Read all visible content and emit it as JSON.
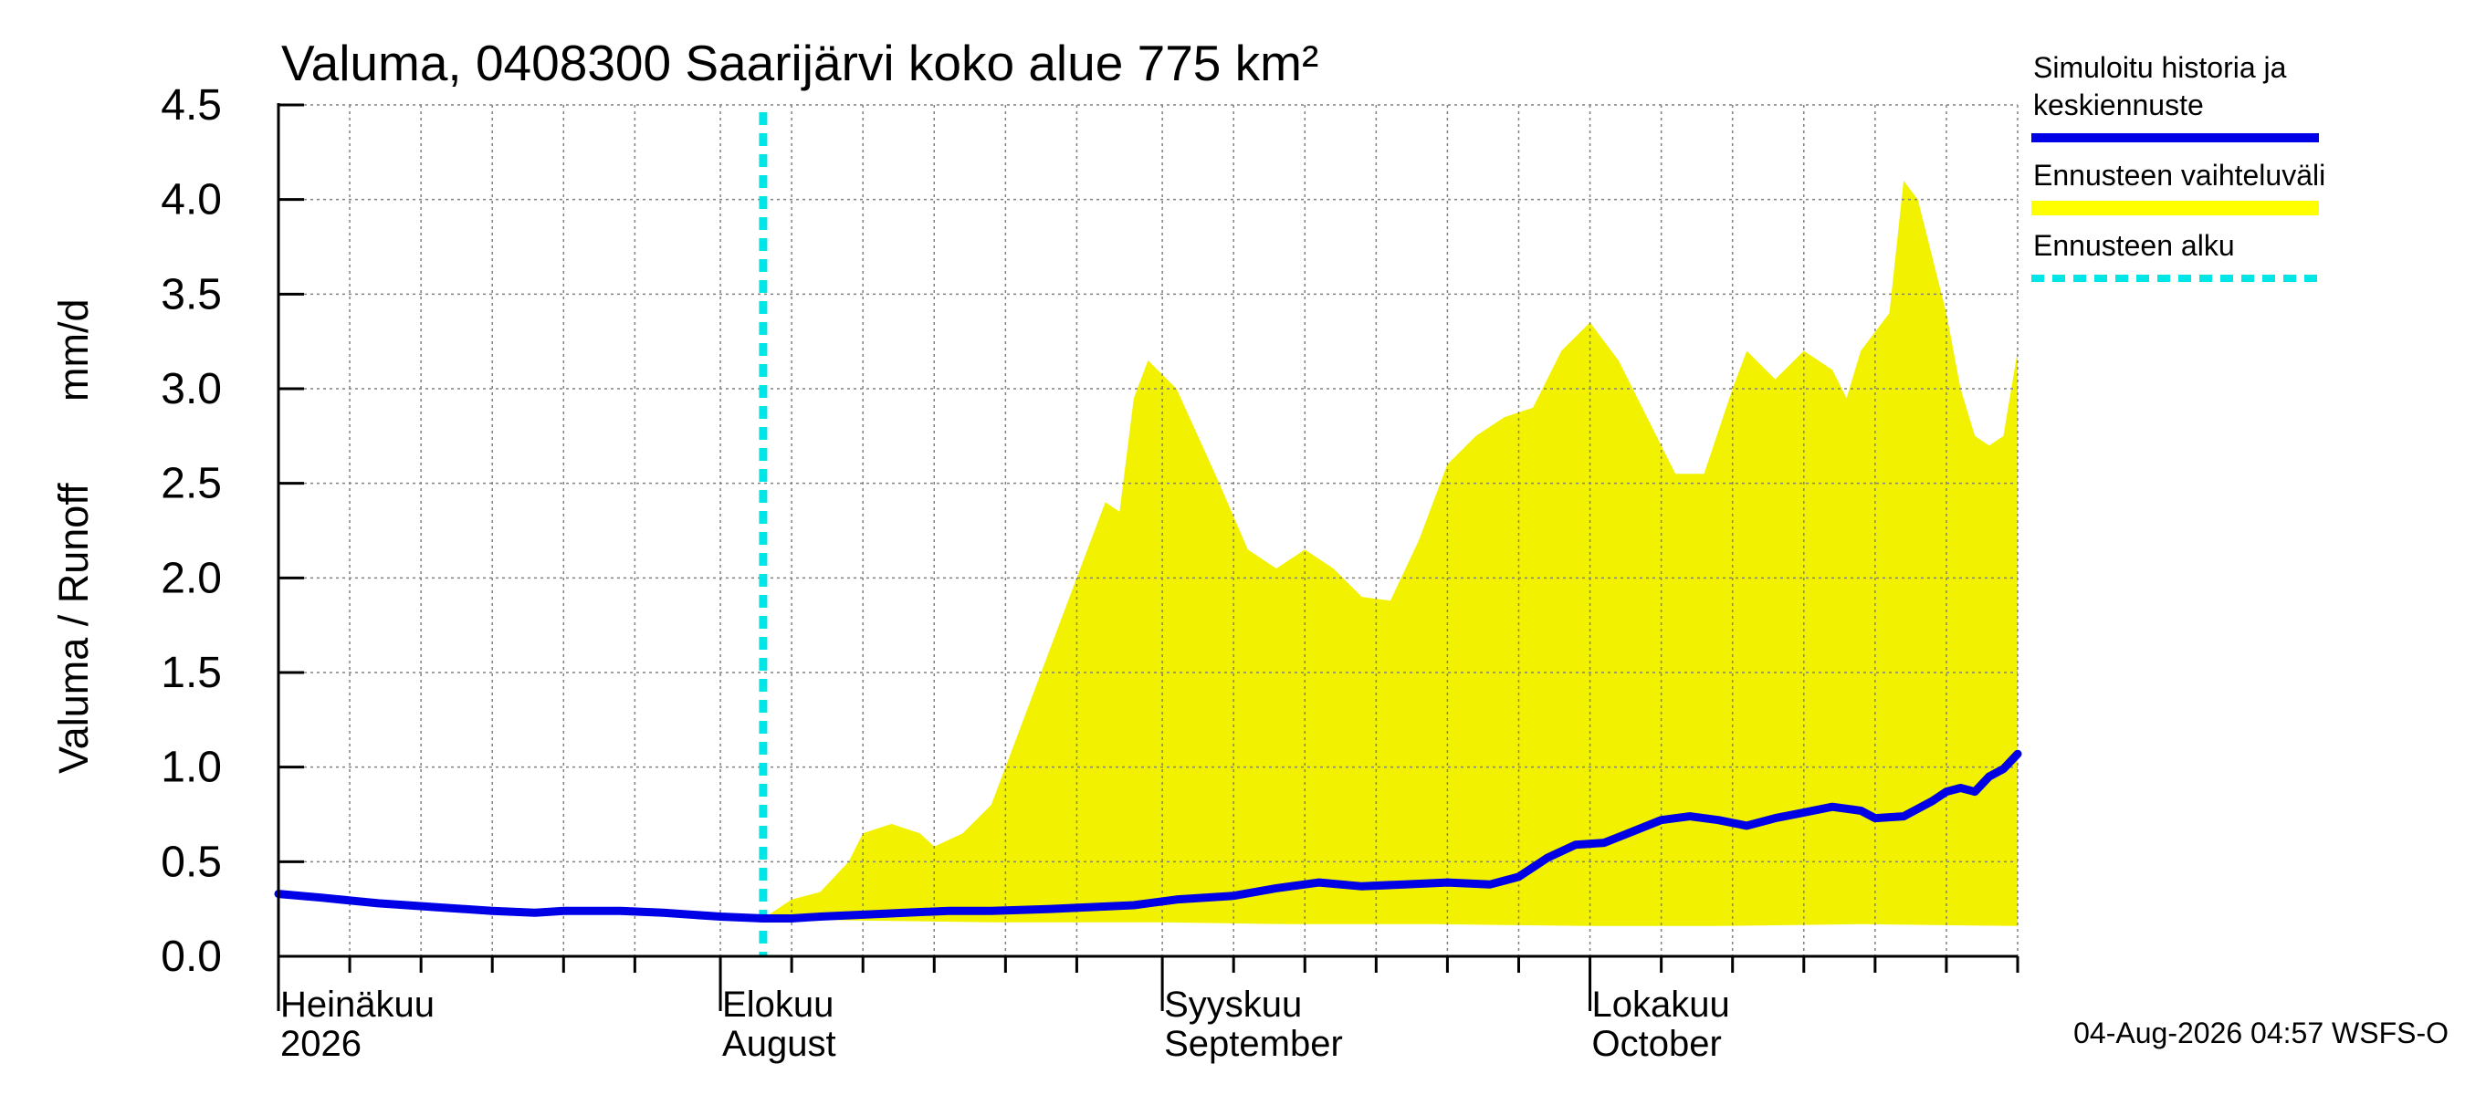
{
  "chart_data": {
    "type": "area",
    "title": "Valuma, 0408300 Saarijärvi koko alue 775 km²",
    "ylabel_left": "Valuma / Runoff",
    "ylabel_right": "mm/d",
    "ylim": [
      0.0,
      4.5
    ],
    "yticks": [
      "0.0",
      "0.5",
      "1.0",
      "1.5",
      "2.0",
      "2.5",
      "3.0",
      "3.5",
      "4.0",
      "4.5"
    ],
    "grid": true,
    "x_start": "2026-07-01",
    "x_end": "2026-10-31",
    "forecast_start": "2026-08-04",
    "month_labels": [
      {
        "date": "2026-07-01",
        "fi": "Heinäkuu",
        "en": "2026"
      },
      {
        "date": "2026-08-01",
        "fi": "Elokuu",
        "en": "August"
      },
      {
        "date": "2026-09-01",
        "fi": "Syyskuu",
        "en": "September"
      },
      {
        "date": "2026-10-01",
        "fi": "Lokakuu",
        "en": "October"
      }
    ],
    "minor_tick_dates": [
      "2026-07-06",
      "2026-07-11",
      "2026-07-16",
      "2026-07-21",
      "2026-07-26",
      "2026-08-06",
      "2026-08-11",
      "2026-08-16",
      "2026-08-21",
      "2026-08-26",
      "2026-09-06",
      "2026-09-11",
      "2026-09-16",
      "2026-09-21",
      "2026-09-26",
      "2026-10-06",
      "2026-10-11",
      "2026-10-16",
      "2026-10-21",
      "2026-10-26",
      "2026-10-31"
    ],
    "legend": [
      {
        "label_lines": [
          "Simuloitu historia ja",
          "keskiennuste"
        ],
        "color": "#0000e6",
        "style": "solid"
      },
      {
        "label_lines": [
          "Ennusteen vaihteluväli"
        ],
        "color": "#ffff00",
        "style": "band"
      },
      {
        "label_lines": [
          "Ennusteen alku"
        ],
        "color": "#00e5e5",
        "style": "dashed"
      }
    ],
    "footer": "04-Aug-2026 04:57 WSFS-O",
    "colors": {
      "mean": "#0000e6",
      "band": "#f2f200",
      "forecast_line": "#00e5e5",
      "grid": "#808080"
    },
    "series": [
      {
        "name": "Simuloitu historia ja keskiennuste",
        "points": [
          [
            "2026-07-01",
            0.33
          ],
          [
            "2026-07-04",
            0.31
          ],
          [
            "2026-07-08",
            0.28
          ],
          [
            "2026-07-12",
            0.26
          ],
          [
            "2026-07-16",
            0.24
          ],
          [
            "2026-07-19",
            0.23
          ],
          [
            "2026-07-21",
            0.24
          ],
          [
            "2026-07-25",
            0.24
          ],
          [
            "2026-07-28",
            0.23
          ],
          [
            "2026-08-01",
            0.21
          ],
          [
            "2026-08-04",
            0.2
          ],
          [
            "2026-08-06",
            0.2
          ],
          [
            "2026-08-08",
            0.21
          ],
          [
            "2026-08-11",
            0.22
          ],
          [
            "2026-08-14",
            0.23
          ],
          [
            "2026-08-17",
            0.24
          ],
          [
            "2026-08-20",
            0.24
          ],
          [
            "2026-08-24",
            0.25
          ],
          [
            "2026-08-27",
            0.26
          ],
          [
            "2026-08-30",
            0.27
          ],
          [
            "2026-09-02",
            0.3
          ],
          [
            "2026-09-06",
            0.32
          ],
          [
            "2026-09-09",
            0.36
          ],
          [
            "2026-09-12",
            0.39
          ],
          [
            "2026-09-15",
            0.37
          ],
          [
            "2026-09-18",
            0.38
          ],
          [
            "2026-09-21",
            0.39
          ],
          [
            "2026-09-24",
            0.38
          ],
          [
            "2026-09-26",
            0.42
          ],
          [
            "2026-09-28",
            0.52
          ],
          [
            "2026-09-30",
            0.59
          ],
          [
            "2026-10-02",
            0.6
          ],
          [
            "2026-10-04",
            0.66
          ],
          [
            "2026-10-06",
            0.72
          ],
          [
            "2026-10-08",
            0.74
          ],
          [
            "2026-10-10",
            0.72
          ],
          [
            "2026-10-12",
            0.69
          ],
          [
            "2026-10-14",
            0.73
          ],
          [
            "2026-10-16",
            0.76
          ],
          [
            "2026-10-18",
            0.79
          ],
          [
            "2026-10-20",
            0.77
          ],
          [
            "2026-10-21",
            0.73
          ],
          [
            "2026-10-23",
            0.74
          ],
          [
            "2026-10-25",
            0.82
          ],
          [
            "2026-10-26",
            0.87
          ],
          [
            "2026-10-27",
            0.89
          ],
          [
            "2026-10-28",
            0.87
          ],
          [
            "2026-10-29",
            0.95
          ],
          [
            "2026-10-30",
            0.99
          ],
          [
            "2026-10-31",
            1.07
          ]
        ]
      },
      {
        "name": "Ennusteen vaihteluväli",
        "upper": [
          [
            "2026-08-04",
            0.2
          ],
          [
            "2026-08-06",
            0.3
          ],
          [
            "2026-08-08",
            0.34
          ],
          [
            "2026-08-10",
            0.5
          ],
          [
            "2026-08-11",
            0.65
          ],
          [
            "2026-08-13",
            0.7
          ],
          [
            "2026-08-15",
            0.65
          ],
          [
            "2026-08-16",
            0.58
          ],
          [
            "2026-08-18",
            0.65
          ],
          [
            "2026-08-20",
            0.8
          ],
          [
            "2026-08-22",
            1.2
          ],
          [
            "2026-08-25",
            1.8
          ],
          [
            "2026-08-27",
            2.2
          ],
          [
            "2026-08-28",
            2.4
          ],
          [
            "2026-08-29",
            2.35
          ],
          [
            "2026-08-30",
            2.95
          ],
          [
            "2026-08-31",
            3.15
          ],
          [
            "2026-09-02",
            3.0
          ],
          [
            "2026-09-05",
            2.5
          ],
          [
            "2026-09-07",
            2.15
          ],
          [
            "2026-09-09",
            2.05
          ],
          [
            "2026-09-11",
            2.15
          ],
          [
            "2026-09-13",
            2.05
          ],
          [
            "2026-09-15",
            1.9
          ],
          [
            "2026-09-17",
            1.88
          ],
          [
            "2026-09-19",
            2.2
          ],
          [
            "2026-09-21",
            2.6
          ],
          [
            "2026-09-23",
            2.75
          ],
          [
            "2026-09-25",
            2.85
          ],
          [
            "2026-09-27",
            2.9
          ],
          [
            "2026-09-29",
            3.2
          ],
          [
            "2026-10-01",
            3.35
          ],
          [
            "2026-10-03",
            3.15
          ],
          [
            "2026-10-05",
            2.85
          ],
          [
            "2026-10-07",
            2.55
          ],
          [
            "2026-10-09",
            2.55
          ],
          [
            "2026-10-11",
            3.0
          ],
          [
            "2026-10-12",
            3.2
          ],
          [
            "2026-10-14",
            3.05
          ],
          [
            "2026-10-16",
            3.2
          ],
          [
            "2026-10-18",
            3.1
          ],
          [
            "2026-10-19",
            2.95
          ],
          [
            "2026-10-20",
            3.2
          ],
          [
            "2026-10-22",
            3.4
          ],
          [
            "2026-10-23",
            4.1
          ],
          [
            "2026-10-24",
            4.0
          ],
          [
            "2026-10-25",
            3.7
          ],
          [
            "2026-10-26",
            3.4
          ],
          [
            "2026-10-27",
            3.0
          ],
          [
            "2026-10-28",
            2.75
          ],
          [
            "2026-10-29",
            2.7
          ],
          [
            "2026-10-30",
            2.75
          ],
          [
            "2026-10-31",
            3.2
          ]
        ],
        "lower": [
          [
            "2026-08-04",
            0.2
          ],
          [
            "2026-08-10",
            0.19
          ],
          [
            "2026-08-20",
            0.18
          ],
          [
            "2026-09-01",
            0.18
          ],
          [
            "2026-09-10",
            0.17
          ],
          [
            "2026-09-20",
            0.17
          ],
          [
            "2026-10-01",
            0.16
          ],
          [
            "2026-10-10",
            0.16
          ],
          [
            "2026-10-20",
            0.17
          ],
          [
            "2026-10-31",
            0.16
          ]
        ]
      }
    ]
  }
}
